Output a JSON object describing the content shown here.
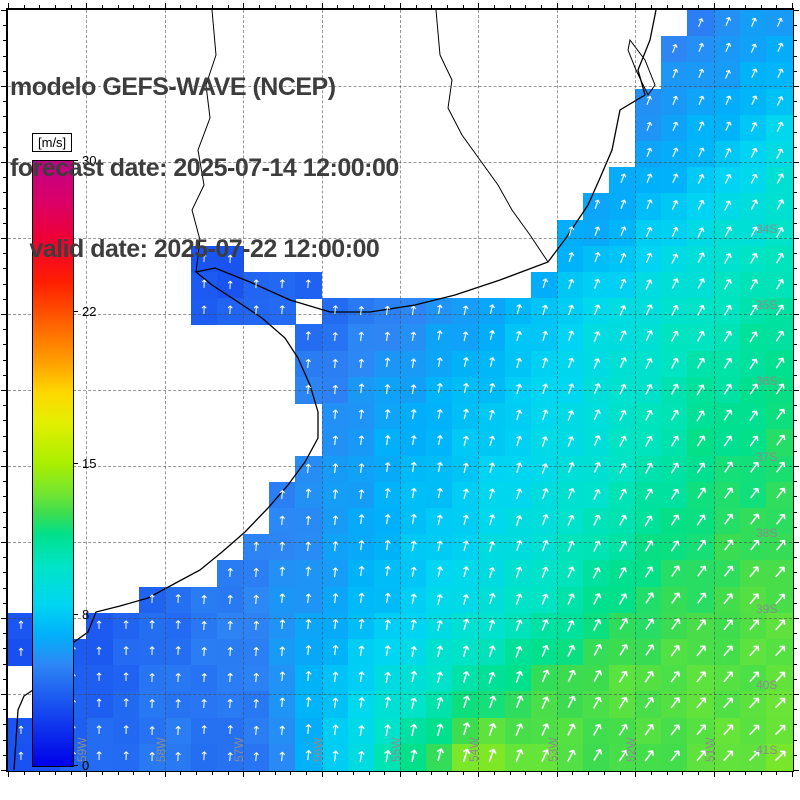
{
  "header": {
    "title": "modelo GEFS-WAVE (NCEP)",
    "forecast_line": "forecast date: 2025-07-14 12:00:00",
    "valid_line": "   valid date: 2025-07-22 12:00:00"
  },
  "colorbar": {
    "unit_label": "[m/s]",
    "tick_labels": [
      "30",
      "22",
      "15",
      "8",
      "0"
    ],
    "min": 0,
    "max": 30,
    "gradient_stops": [
      [
        0,
        "#0000e8"
      ],
      [
        3,
        "#1850f0"
      ],
      [
        5,
        "#2e86f4"
      ],
      [
        6.5,
        "#00b0fa"
      ],
      [
        8,
        "#00d6f2"
      ],
      [
        10,
        "#00e4c4"
      ],
      [
        11.5,
        "#00e08c"
      ],
      [
        12.5,
        "#3cdc50"
      ],
      [
        13.5,
        "#72e632"
      ],
      [
        15,
        "#aaee00"
      ],
      [
        17,
        "#e2f000"
      ],
      [
        18.5,
        "#ffd800"
      ],
      [
        20,
        "#ffa000"
      ],
      [
        22,
        "#ff6000"
      ],
      [
        24,
        "#ff1e00"
      ],
      [
        26,
        "#f00032"
      ],
      [
        28,
        "#da0068"
      ],
      [
        30,
        "#c20086"
      ]
    ]
  },
  "axes": {
    "lat_labels": [
      {
        "text": "34S",
        "row": 3
      },
      {
        "text": "35S",
        "row": 4
      },
      {
        "text": "36S",
        "row": 5
      },
      {
        "text": "37S",
        "row": 6
      },
      {
        "text": "38S",
        "row": 7
      },
      {
        "text": "39S",
        "row": 8
      },
      {
        "text": "40S",
        "row": 9
      },
      {
        "text": "41S",
        "row": 9.85
      }
    ],
    "lon_labels": [
      {
        "text": "59W",
        "col": 1
      },
      {
        "text": "58W",
        "col": 2
      },
      {
        "text": "57W",
        "col": 3
      },
      {
        "text": "56W",
        "col": 4
      },
      {
        "text": "55W",
        "col": 5
      },
      {
        "text": "54W",
        "col": 6
      },
      {
        "text": "53W",
        "col": 7
      },
      {
        "text": "52W",
        "col": 8
      },
      {
        "text": "51W",
        "col": 9
      }
    ]
  },
  "chart_data": {
    "type": "heatmap",
    "title": "modelo GEFS-WAVE (NCEP)",
    "subtitle_lines": [
      "forecast date: 2025-07-14 12:00:00",
      "valid date: 2025-07-22 12:00:00"
    ],
    "variable": "wave/wind speed field with direction arrows over coastal ocean",
    "units": "m/s",
    "value_range": [
      0,
      30
    ],
    "colorbar_ticks": [
      30,
      22,
      15,
      8,
      0
    ],
    "grid_shape": {
      "rows": 11,
      "cols": 11
    },
    "values_grid": [
      [
        2,
        2,
        2,
        2,
        3,
        3,
        3,
        4,
        4,
        5,
        6
      ],
      [
        2,
        2,
        2,
        3,
        3,
        3,
        4,
        4,
        5,
        6,
        7
      ],
      [
        2,
        2,
        3,
        3,
        3,
        4,
        4,
        5,
        6,
        7,
        9
      ],
      [
        3,
        3,
        3,
        3,
        4,
        4,
        5,
        6,
        7,
        9,
        10
      ],
      [
        3,
        3,
        3,
        4,
        4,
        5,
        6,
        7.5,
        9,
        10,
        11
      ],
      [
        3,
        3,
        4,
        4,
        5,
        6,
        7,
        8,
        9.5,
        11,
        11.5
      ],
      [
        3,
        4,
        4,
        4.5,
        5.5,
        6.5,
        7.5,
        8.5,
        10,
        11.5,
        12
      ],
      [
        3.5,
        4,
        4.5,
        4.5,
        5.5,
        7,
        8,
        9.5,
        11,
        12,
        12.5
      ],
      [
        3.5,
        3.5,
        4,
        5,
        6,
        7.5,
        9,
        10.5,
        12,
        12.5,
        13
      ],
      [
        3,
        3.5,
        4.5,
        4.5,
        7,
        9,
        11,
        12.5,
        13,
        13,
        13
      ],
      [
        3,
        4,
        4.5,
        4,
        7,
        11,
        14,
        13,
        12.5,
        13,
        13.5
      ]
    ],
    "direction_base_deg_by_column": [
      0,
      0,
      2,
      4,
      6,
      10,
      16,
      22,
      30,
      36,
      40
    ],
    "direction_row_scale": [
      0.6,
      1.15
    ],
    "field_mask": {
      "rows": 29,
      "cols": 30,
      "ocean_start_col_by_row": [
        26,
        25,
        25,
        24,
        24,
        24,
        23,
        22,
        21,
        21,
        20,
        12,
        11,
        11,
        11,
        12,
        12,
        11,
        10,
        10,
        9,
        8,
        5,
        3,
        2,
        2,
        1,
        0,
        0
      ],
      "extra_ocean_cells": [
        [
          9,
          7
        ],
        [
          9,
          8
        ],
        [
          10,
          7
        ],
        [
          10,
          8
        ],
        [
          10,
          9
        ],
        [
          10,
          10
        ],
        [
          10,
          11
        ],
        [
          11,
          7
        ],
        [
          11,
          8
        ],
        [
          11,
          9
        ],
        [
          11,
          10
        ],
        [
          23,
          0
        ],
        [
          24,
          0
        ]
      ]
    }
  }
}
